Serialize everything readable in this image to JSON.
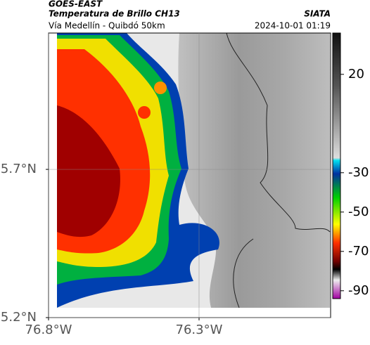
{
  "header": {
    "satellite": "GOES-EAST",
    "title": "Temperatura de Brillo CH13",
    "subtitle": "Vía Medellín - Quibdó 50km",
    "source": "SIATA",
    "datetime": "2024-10-01 01:19"
  },
  "map": {
    "xlim": [
      -76.8,
      -75.863
    ],
    "ylim": [
      5.2,
      6.16
    ],
    "xticks": [
      {
        "value": -76.8,
        "label": "76.8°W"
      },
      {
        "value": -76.3,
        "label": "76.3°W"
      }
    ],
    "yticks": [
      {
        "value": 5.7,
        "label": "5.7°N"
      },
      {
        "value": 5.2,
        "label": "5.2°N"
      }
    ],
    "grid": true
  },
  "colorbar": {
    "lim": [
      -94,
      41
    ],
    "ticks": [
      20,
      -30,
      -50,
      -70,
      -90
    ]
  }
}
